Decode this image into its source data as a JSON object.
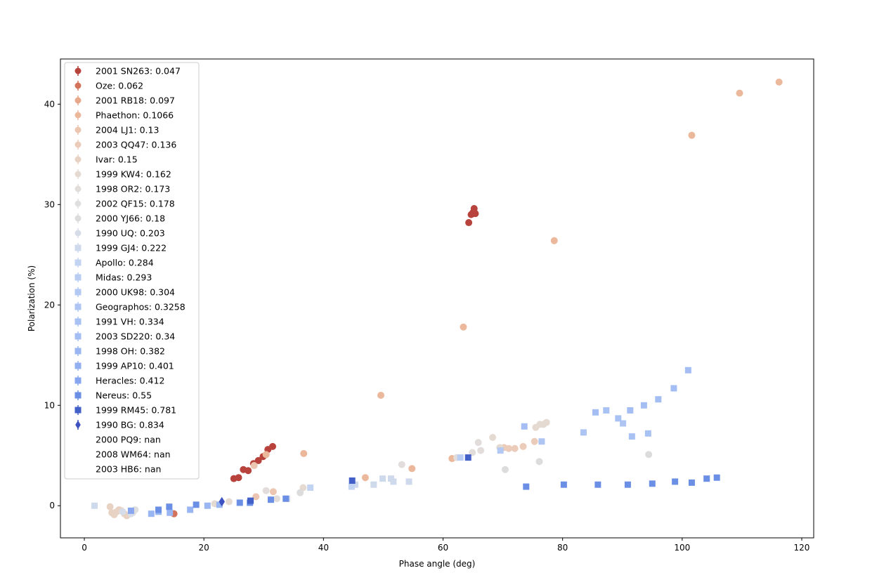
{
  "chart_data": {
    "type": "scatter",
    "title": "",
    "xlabel": "Phase angle (deg)",
    "ylabel": "Polarization (%)",
    "xlim": [
      -4,
      122
    ],
    "ylim": [
      -3.2,
      44.5
    ],
    "xticks": [
      0,
      20,
      40,
      60,
      80,
      100,
      120
    ],
    "yticks": [
      0,
      10,
      20,
      30,
      40
    ],
    "grid": false,
    "legend_position": "top-left",
    "series": [
      {
        "name": "2001 SN263: 0.047",
        "color": "#b8433d",
        "marker": "circle",
        "points": [
          [
            25.0,
            2.7
          ],
          [
            25.8,
            2.8
          ],
          [
            26.6,
            3.6
          ],
          [
            27.4,
            3.5
          ],
          [
            28.3,
            4.2
          ],
          [
            29.1,
            4.5
          ],
          [
            29.9,
            4.9
          ],
          [
            30.7,
            5.6
          ],
          [
            31.5,
            5.9
          ],
          [
            64.3,
            28.2
          ],
          [
            64.7,
            29.0
          ],
          [
            65.0,
            29.2
          ],
          [
            65.2,
            29.6
          ],
          [
            65.4,
            29.1
          ]
        ]
      },
      {
        "name": "Oze: 0.062",
        "color": "#d4735c",
        "marker": "circle",
        "points": [
          [
            15.0,
            -0.8
          ]
        ]
      },
      {
        "name": "2001 RB18: 0.097",
        "color": "#e7a88c",
        "marker": "circle",
        "points": []
      },
      {
        "name": "Phaethon: 0.1066",
        "color": "#ebb89c",
        "marker": "circle",
        "points": [
          [
            30.4,
            5.1
          ],
          [
            36.7,
            5.2
          ],
          [
            47.0,
            2.8
          ],
          [
            49.6,
            11.0
          ],
          [
            54.8,
            3.7
          ],
          [
            61.5,
            4.7
          ],
          [
            63.4,
            17.8
          ],
          [
            78.6,
            26.4
          ],
          [
            101.6,
            36.9
          ],
          [
            109.6,
            41.1
          ],
          [
            116.2,
            42.2
          ]
        ]
      },
      {
        "name": "2004 LJ1: 0.13",
        "color": "#ecc6b1",
        "marker": "circle",
        "points": [
          [
            28.4,
            4.0
          ],
          [
            28.7,
            0.9
          ],
          [
            31.6,
            1.4
          ]
        ]
      },
      {
        "name": "2003 QQ47: 0.136",
        "color": "#ebcbb9",
        "marker": "circle",
        "points": [
          [
            70.2,
            5.8
          ],
          [
            71.0,
            5.7
          ],
          [
            72.0,
            5.7
          ],
          [
            73.4,
            5.9
          ],
          [
            75.3,
            6.4
          ]
        ]
      },
      {
        "name": "Ivar: 0.15",
        "color": "#e8d2c4",
        "marker": "circle",
        "points": [
          [
            4.3,
            -0.1
          ],
          [
            4.6,
            -0.7
          ],
          [
            5.0,
            -0.9
          ],
          [
            5.4,
            -0.6
          ],
          [
            5.8,
            -0.4
          ],
          [
            6.2,
            -0.5
          ],
          [
            6.7,
            -0.8
          ],
          [
            7.1,
            -1.0
          ]
        ]
      },
      {
        "name": "1999 KW4: 0.162",
        "color": "#e5dad2",
        "marker": "circle",
        "points": [
          [
            21.8,
            0.2
          ],
          [
            24.2,
            0.4
          ],
          [
            36.6,
            1.8
          ],
          [
            68.3,
            6.8
          ],
          [
            69.5,
            5.8
          ],
          [
            75.5,
            7.8
          ],
          [
            76.2,
            8.1
          ],
          [
            76.8,
            8.1
          ],
          [
            77.3,
            8.3
          ]
        ]
      },
      {
        "name": "1998 OR2: 0.173",
        "color": "#e2dddb",
        "marker": "circle",
        "points": [
          [
            30.4,
            1.5
          ],
          [
            32.2,
            0.7
          ],
          [
            53.1,
            4.1
          ],
          [
            62.3,
            4.8
          ],
          [
            64.9,
            5.3
          ],
          [
            65.9,
            6.3
          ],
          [
            66.3,
            5.5
          ]
        ]
      },
      {
        "name": "2002 QF15: 0.178",
        "color": "#dfdfdf",
        "marker": "circle",
        "points": [
          [
            8.1,
            -0.7
          ],
          [
            8.5,
            -0.4
          ]
        ]
      },
      {
        "name": "2000 YJ66: 0.18",
        "color": "#dcdcdc",
        "marker": "circle",
        "points": [
          [
            36.1,
            1.3
          ],
          [
            70.4,
            3.6
          ],
          [
            76.1,
            4.4
          ],
          [
            94.4,
            5.1
          ]
        ]
      },
      {
        "name": "1990 UQ: 0.203",
        "color": "#d7dde8",
        "marker": "circle",
        "points": [
          [
            6.4,
            -0.6
          ],
          [
            7.8,
            -0.8
          ]
        ]
      },
      {
        "name": "1999 GJ4: 0.222",
        "color": "#cfd9ec",
        "marker": "square",
        "points": [
          [
            1.7,
            0.0
          ],
          [
            33.9,
            0.7
          ],
          [
            45.3,
            2.1
          ],
          [
            48.4,
            2.1
          ],
          [
            49.9,
            2.7
          ],
          [
            51.3,
            2.7
          ],
          [
            51.7,
            2.4
          ],
          [
            54.3,
            2.4
          ]
        ]
      },
      {
        "name": "Apollo: 0.284",
        "color": "#c2d4f2",
        "marker": "square",
        "points": [
          [
            37.8,
            1.8
          ],
          [
            44.7,
            1.9
          ]
        ]
      },
      {
        "name": "Midas: 0.293",
        "color": "#b9cdf3",
        "marker": "square",
        "points": [
          [
            62.9,
            4.8
          ]
        ]
      },
      {
        "name": "2000 UK98: 0.304",
        "color": "#b3c8f2",
        "marker": "square",
        "points": [
          [
            69.6,
            5.5
          ]
        ]
      },
      {
        "name": "Geographos: 0.3258",
        "color": "#aec5f3",
        "marker": "square",
        "points": [
          [
            76.5,
            6.4
          ],
          [
            83.5,
            7.3
          ],
          [
            90.1,
            8.2
          ]
        ]
      },
      {
        "name": "1991 VH: 0.334",
        "color": "#a9c2f4",
        "marker": "square",
        "points": [
          [
            87.3,
            9.5
          ],
          [
            89.3,
            8.7
          ],
          [
            91.6,
            6.9
          ],
          [
            94.3,
            7.2
          ]
        ]
      },
      {
        "name": "2003 SD220: 0.34",
        "color": "#a4beF4",
        "marker": "square",
        "points": [
          [
            73.6,
            7.9
          ],
          [
            85.5,
            9.3
          ],
          [
            91.3,
            9.5
          ],
          [
            93.6,
            10.0
          ],
          [
            96.0,
            10.6
          ],
          [
            98.6,
            11.7
          ],
          [
            101.0,
            13.5
          ]
        ]
      },
      {
        "name": "1998 OH: 0.382",
        "color": "#9ab6f2",
        "marker": "square",
        "points": [
          [
            11.2,
            -0.8
          ],
          [
            12.4,
            -0.6
          ],
          [
            14.3,
            -0.7
          ],
          [
            17.7,
            -0.4
          ],
          [
            20.6,
            0.0
          ],
          [
            22.6,
            0.1
          ]
        ]
      },
      {
        "name": "1999 AP10: 0.401",
        "color": "#92aff0",
        "marker": "square",
        "points": []
      },
      {
        "name": "Heracles: 0.412",
        "color": "#87a6ef",
        "marker": "square",
        "points": [
          [
            7.8,
            -0.5
          ]
        ]
      },
      {
        "name": "Nereus: 0.55",
        "color": "#6a8fe4",
        "marker": "square",
        "points": [
          [
            12.4,
            -0.4
          ],
          [
            14.2,
            -0.1
          ],
          [
            18.7,
            0.1
          ],
          [
            26.0,
            0.3
          ],
          [
            27.7,
            0.3
          ],
          [
            31.2,
            0.6
          ],
          [
            33.7,
            0.7
          ],
          [
            73.9,
            1.9
          ],
          [
            80.2,
            2.1
          ],
          [
            85.9,
            2.1
          ],
          [
            90.9,
            2.1
          ],
          [
            95.0,
            2.2
          ],
          [
            98.8,
            2.4
          ],
          [
            101.6,
            2.3
          ],
          [
            104.1,
            2.7
          ],
          [
            105.8,
            2.8
          ]
        ]
      },
      {
        "name": "1999 RM45: 0.781",
        "color": "#4360c9",
        "marker": "square",
        "points": [
          [
            27.8,
            0.5
          ],
          [
            44.8,
            2.5
          ],
          [
            64.2,
            4.8
          ]
        ]
      },
      {
        "name": "1990 BG: 0.834",
        "color": "#3d52c0",
        "marker": "diamond",
        "points": [
          [
            23.0,
            0.4
          ]
        ]
      },
      {
        "name": "2000 PQ9: nan",
        "color": "#ffffff",
        "marker": "none",
        "points": []
      },
      {
        "name": "2008 WM64: nan",
        "color": "#ffffff",
        "marker": "none",
        "points": []
      },
      {
        "name": "2003 HB6: nan",
        "color": "#ffffff",
        "marker": "none",
        "points": []
      }
    ]
  }
}
